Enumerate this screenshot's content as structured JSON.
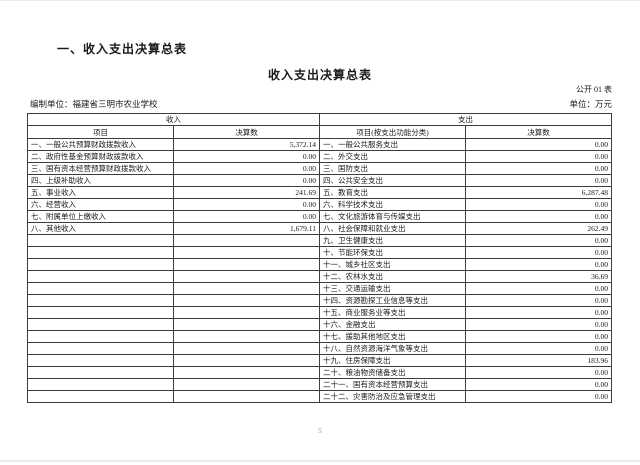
{
  "page": {
    "section_heading": "一、收入支出决算总表",
    "title": "收入支出决算总表",
    "form_code": "公开 01 表",
    "prepared_by": "编制单位：福建省三明市农业学校",
    "unit_label": "单位：万元",
    "page_number": "5"
  },
  "table": {
    "income_header": "收入",
    "expense_header": "支出",
    "columns": {
      "income_item": "项目",
      "income_amount": "决算数",
      "expense_item": "项目(按支出功能分类)",
      "expense_amount": "决算数"
    },
    "rows": [
      {
        "income_item": "一、一般公共预算财政拨款收入",
        "income_amount": "5,372.14",
        "expense_item": "一、一般公共服务支出",
        "expense_amount": "0.00"
      },
      {
        "income_item": "二、政府性基金预算财政拨款收入",
        "income_amount": "0.00",
        "expense_item": "二、外交支出",
        "expense_amount": "0.00"
      },
      {
        "income_item": "三、国有资本经营预算财政拨款收入",
        "income_amount": "0.00",
        "expense_item": "三、国防支出",
        "expense_amount": "0.00"
      },
      {
        "income_item": "四、上级补助收入",
        "income_amount": "0.00",
        "expense_item": "四、公共安全支出",
        "expense_amount": "0.00"
      },
      {
        "income_item": "五、事业收入",
        "income_amount": "241.69",
        "expense_item": "五、教育支出",
        "expense_amount": "6,287.48"
      },
      {
        "income_item": "六、经营收入",
        "income_amount": "0.00",
        "expense_item": "六、科学技术支出",
        "expense_amount": "0.00"
      },
      {
        "income_item": "七、附属单位上缴收入",
        "income_amount": "0.00",
        "expense_item": "七、文化旅游体育与传媒支出",
        "expense_amount": "0.00"
      },
      {
        "income_item": "八、其他收入",
        "income_amount": "1,679.11",
        "expense_item": "八、社会保障和就业支出",
        "expense_amount": "262.49"
      },
      {
        "income_item": "",
        "income_amount": "",
        "expense_item": "九、卫生健康支出",
        "expense_amount": "0.00"
      },
      {
        "income_item": "",
        "income_amount": "",
        "expense_item": "十、节能环保支出",
        "expense_amount": "0.00"
      },
      {
        "income_item": "",
        "income_amount": "",
        "expense_item": "十一、城乡社区支出",
        "expense_amount": "0.00"
      },
      {
        "income_item": "",
        "income_amount": "",
        "expense_item": "十二、农林水支出",
        "expense_amount": "36.69"
      },
      {
        "income_item": "",
        "income_amount": "",
        "expense_item": "十三、交通运输支出",
        "expense_amount": "0.00"
      },
      {
        "income_item": "",
        "income_amount": "",
        "expense_item": "十四、资源勘探工业信息等支出",
        "expense_amount": "0.00"
      },
      {
        "income_item": "",
        "income_amount": "",
        "expense_item": "十五、商业服务业等支出",
        "expense_amount": "0.00"
      },
      {
        "income_item": "",
        "income_amount": "",
        "expense_item": "十六、金融支出",
        "expense_amount": "0.00"
      },
      {
        "income_item": "",
        "income_amount": "",
        "expense_item": "十七、援助其他地区支出",
        "expense_amount": "0.00"
      },
      {
        "income_item": "",
        "income_amount": "",
        "expense_item": "十八、自然资源海洋气象等支出",
        "expense_amount": "0.00"
      },
      {
        "income_item": "",
        "income_amount": "",
        "expense_item": "十九、住房保障支出",
        "expense_amount": "183.96"
      },
      {
        "income_item": "",
        "income_amount": "",
        "expense_item": "二十、粮油物资储备支出",
        "expense_amount": "0.00"
      },
      {
        "income_item": "",
        "income_amount": "",
        "expense_item": "二十一、国有资本经营预算支出",
        "expense_amount": "0.00"
      },
      {
        "income_item": "",
        "income_amount": "",
        "expense_item": "二十二、灾害防治及应急管理支出",
        "expense_amount": "0.00"
      }
    ]
  }
}
